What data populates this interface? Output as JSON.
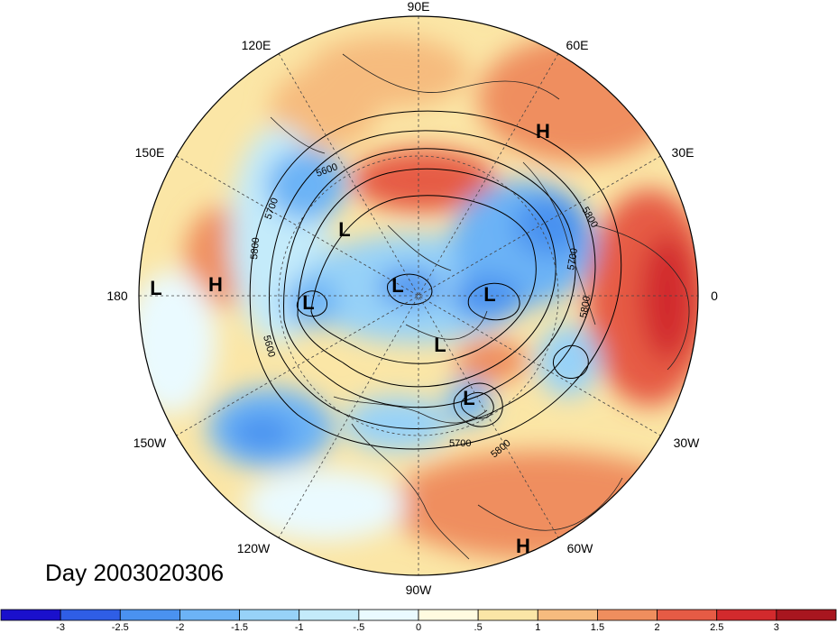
{
  "title": "Day 2003020306",
  "longitude_labels": [
    {
      "id": "lon-90e",
      "text": "90E"
    },
    {
      "id": "lon-60e",
      "text": "60E"
    },
    {
      "id": "lon-30e",
      "text": "30E"
    },
    {
      "id": "lon-0",
      "text": "0"
    },
    {
      "id": "lon-30w",
      "text": "30W"
    },
    {
      "id": "lon-60w",
      "text": "60W"
    },
    {
      "id": "lon-90w",
      "text": "90W"
    },
    {
      "id": "lon-120w",
      "text": "120W"
    },
    {
      "id": "lon-150w",
      "text": "150W"
    },
    {
      "id": "lon-180",
      "text": "180"
    },
    {
      "id": "lon-150e",
      "text": "150E"
    },
    {
      "id": "lon-120e",
      "text": "120E"
    }
  ],
  "pressure_systems": [
    {
      "id": "h-siberia",
      "text": "H"
    },
    {
      "id": "h-pacific",
      "text": "H"
    },
    {
      "id": "h-southamerica",
      "text": "H"
    },
    {
      "id": "l-dateline",
      "text": "L"
    },
    {
      "id": "l-alaska",
      "text": "L"
    },
    {
      "id": "l-beaufort",
      "text": "L"
    },
    {
      "id": "l-arctic",
      "text": "L"
    },
    {
      "id": "l-scandinavia",
      "text": "L"
    },
    {
      "id": "l-hudson",
      "text": "L"
    },
    {
      "id": "l-newfoundland",
      "text": "L"
    }
  ],
  "contour_labels": [
    {
      "id": "c-5600-asia",
      "text": "5600"
    },
    {
      "id": "c-5700-asia",
      "text": "5700"
    },
    {
      "id": "c-5800-asia",
      "text": "5800"
    },
    {
      "id": "c-5600-pac",
      "text": "5600"
    },
    {
      "id": "c-5800-eur",
      "text": "5800"
    },
    {
      "id": "c-5700-eur",
      "text": "5700"
    },
    {
      "id": "c-5800-atl",
      "text": "5800"
    },
    {
      "id": "c-5700-us",
      "text": "5700"
    },
    {
      "id": "c-5800-us",
      "text": "5800"
    }
  ],
  "colorbar": {
    "colors": [
      "#1a10cc",
      "#2f5ee6",
      "#4a92f0",
      "#6cb3f6",
      "#97d2f8",
      "#c4ebfa",
      "#eafaff",
      "#fffbe0",
      "#fbe6a6",
      "#f6bb7e",
      "#ef8e5e",
      "#e65b45",
      "#d22a2d",
      "#a8161f"
    ],
    "ticks": [
      "-3",
      "-2.5",
      "-2",
      "-1.5",
      "-1",
      "-.5",
      "0",
      ".5",
      "1",
      "1.5",
      "2",
      "2.5",
      "3"
    ]
  }
}
